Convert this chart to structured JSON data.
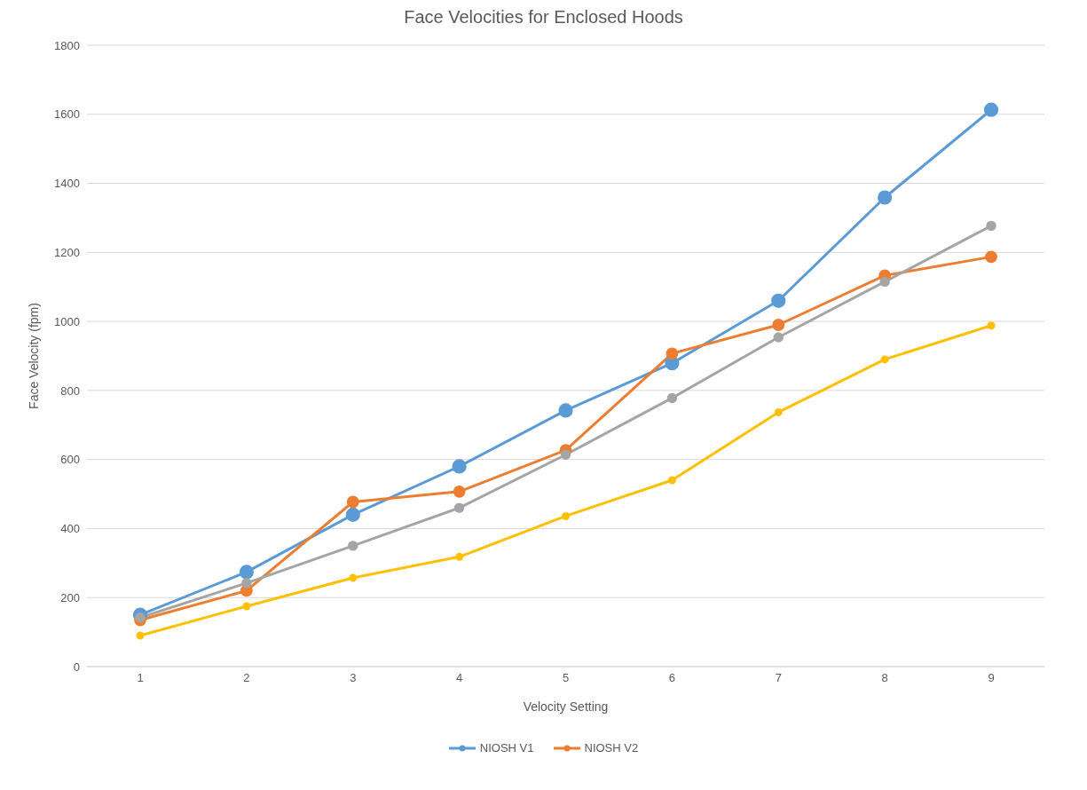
{
  "chart_data": {
    "type": "line",
    "title": "Face Velocities for Enclosed Hoods",
    "xlabel": "Velocity Setting",
    "ylabel": "Face  Velocity (fpm)",
    "categories": [
      "1",
      "2",
      "3",
      "4",
      "5",
      "6",
      "7",
      "8",
      "9"
    ],
    "series": [
      {
        "name": "NIOSH V1",
        "color": "#5b9bd5",
        "values": [
          150,
          274,
          440,
          580,
          742,
          879,
          1060,
          1359,
          1613
        ]
      },
      {
        "name": "NIOSH V2",
        "color": "#ed7d31",
        "values": [
          135,
          220,
          477,
          507,
          627,
          907,
          990,
          1133,
          1187
        ]
      },
      {
        "color": "#a5a5a5",
        "values": [
          142,
          242,
          350,
          460,
          614,
          778,
          954,
          1115,
          1277
        ]
      },
      {
        "color": "#ffc000",
        "values": [
          90,
          175,
          257,
          318,
          436,
          540,
          737,
          890,
          988
        ]
      }
    ],
    "ylim": [
      0,
      1800
    ],
    "yticks": [
      0,
      200,
      400,
      600,
      800,
      1000,
      1200,
      1400,
      1600,
      1800
    ],
    "grid": "y",
    "legend": "bottom",
    "marker": "circle",
    "line_style": "solid"
  }
}
